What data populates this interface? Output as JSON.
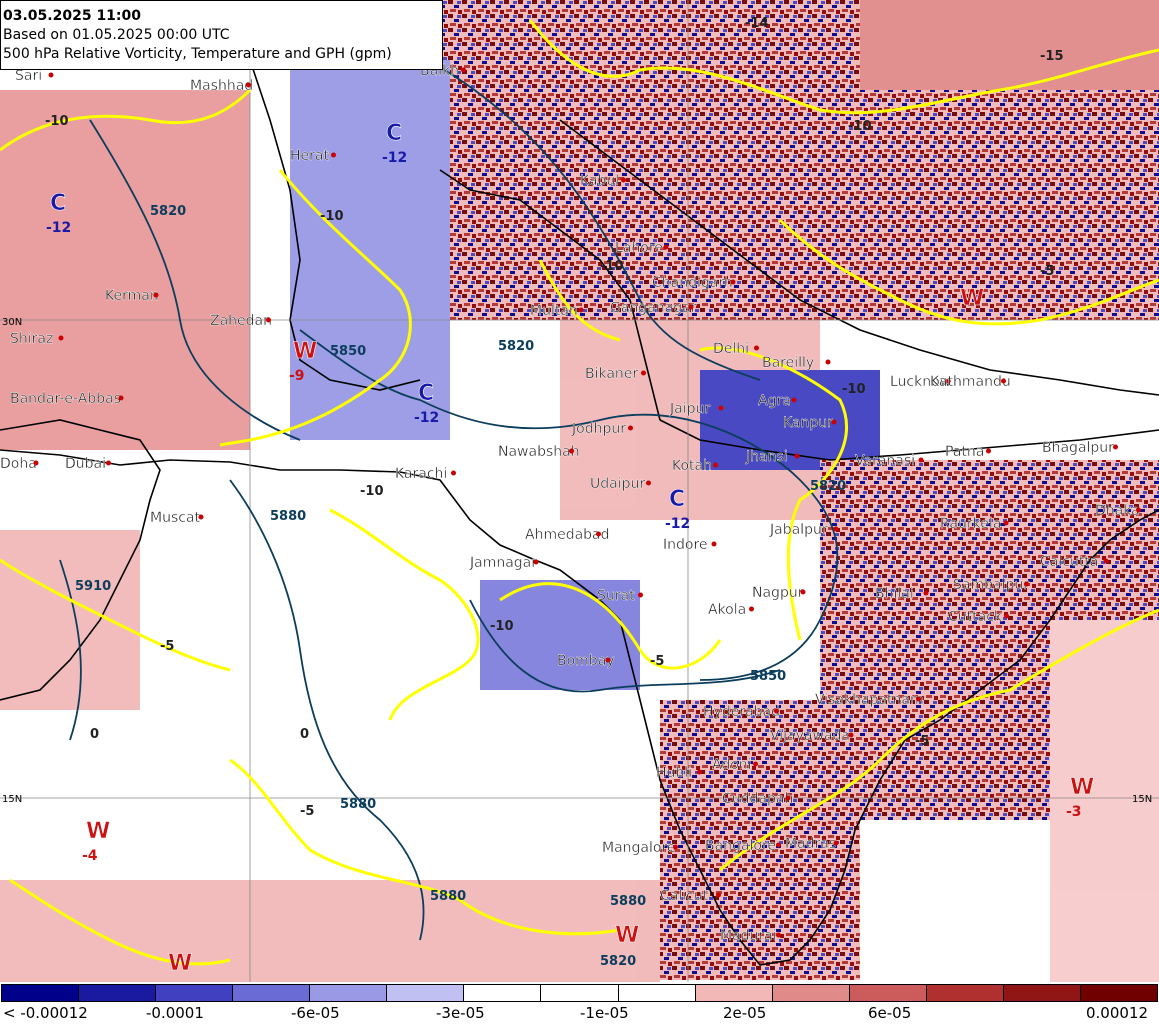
{
  "header": {
    "valid_time": "03.05.2025 11:00",
    "run": "Based on 01.05.2025 00:00 UTC",
    "parameter": "500 hPa Relative Vorticity, Temperature and GPH (gpm)"
  },
  "colorbar": {
    "colors": [
      "#00008b",
      "#1a1aa0",
      "#4040c0",
      "#6b6bd6",
      "#9999e6",
      "#c0c0f2",
      "#ffffff",
      "#ffffff",
      "#ffffff",
      "#f2b8b8",
      "#e08a8a",
      "#cc5c5c",
      "#b03030",
      "#901515",
      "#700000"
    ],
    "labels": [
      "< -0.00012",
      "-0.0001",
      "-6e-05",
      "-3e-05",
      "-1e-05",
      "2e-05",
      "6e-05",
      "0.00012"
    ]
  },
  "map": {
    "cities": [
      {
        "name": "Sari"
      },
      {
        "name": "Mashhad"
      },
      {
        "name": "Balkh"
      },
      {
        "name": "Herat"
      },
      {
        "name": "Kerman"
      },
      {
        "name": "Zahedan"
      },
      {
        "name": "Shiraz"
      },
      {
        "name": "Bandar-e-Abbas"
      },
      {
        "name": "Doha"
      },
      {
        "name": "Dubai"
      },
      {
        "name": "Muscat"
      },
      {
        "name": "Karachi"
      },
      {
        "name": "Nawabshah"
      },
      {
        "name": "Multan"
      },
      {
        "name": "Ganganagar"
      },
      {
        "name": "Chandigarh"
      },
      {
        "name": "Bikaner"
      },
      {
        "name": "Delhi"
      },
      {
        "name": "Bareilly"
      },
      {
        "name": "Agra"
      },
      {
        "name": "Jaipur"
      },
      {
        "name": "Jodhpur"
      },
      {
        "name": "Kanpur"
      },
      {
        "name": "Jhansi"
      },
      {
        "name": "Kotah"
      },
      {
        "name": "Udaipur"
      },
      {
        "name": "Varanasi"
      },
      {
        "name": "Patna"
      },
      {
        "name": "Ahmedabad"
      },
      {
        "name": "Indore"
      },
      {
        "name": "Jabalpur"
      },
      {
        "name": "Jamnagar"
      },
      {
        "name": "Surat"
      },
      {
        "name": "Akola"
      },
      {
        "name": "Nagpur"
      },
      {
        "name": "Bhilai"
      },
      {
        "name": "Bombay"
      },
      {
        "name": "Sambalpur"
      },
      {
        "name": "Cuttack"
      },
      {
        "name": "Hyderabad"
      },
      {
        "name": "Visakhapatnam"
      },
      {
        "name": "Vijayawada"
      },
      {
        "name": "Adoni"
      },
      {
        "name": "Hubli"
      },
      {
        "name": "Cuddapah"
      },
      {
        "name": "Mangalore"
      },
      {
        "name": "Bangalore"
      },
      {
        "name": "Madras"
      },
      {
        "name": "Calicut"
      },
      {
        "name": "Madurai"
      },
      {
        "name": "Dhaka"
      },
      {
        "name": "Calcutta"
      },
      {
        "name": "Raurkela"
      },
      {
        "name": "Bhagalpur"
      },
      {
        "name": "Lucknow"
      },
      {
        "name": "Kathmandu"
      },
      {
        "name": "Kabul"
      },
      {
        "name": "Lahore"
      }
    ],
    "pressure_markers": [
      {
        "letter": "C",
        "value": "-12",
        "type": "cold"
      },
      {
        "letter": "C",
        "value": "-12",
        "type": "cold"
      },
      {
        "letter": "C",
        "value": "-12",
        "type": "cold"
      },
      {
        "letter": "C",
        "value": "-12",
        "type": "cold"
      },
      {
        "letter": "W",
        "value": "-9",
        "type": "warm"
      },
      {
        "letter": "W",
        "value": "-4",
        "type": "warm"
      },
      {
        "letter": "W",
        "value": "-3",
        "type": "warm"
      },
      {
        "letter": "W",
        "value": "",
        "type": "warm"
      },
      {
        "letter": "W",
        "value": "",
        "type": "warm"
      },
      {
        "letter": "W",
        "value": "",
        "type": "warm"
      }
    ],
    "gph_labels": [
      "5820",
      "5850",
      "5880",
      "5880",
      "5910",
      "5850",
      "5820",
      "5880",
      "5880",
      "5820",
      "5820"
    ],
    "temp_labels": [
      "-10",
      "-10",
      "-10",
      "-10",
      "-5",
      "-5",
      "-5",
      "-10",
      "0",
      "0",
      "-15",
      "-14",
      "-5",
      "-10",
      "-5",
      "-10"
    ],
    "lat_labels": [
      "30N",
      "15N",
      "15N"
    ],
    "colors": {
      "cold": "#1a1aa8",
      "warm": "#cc1111",
      "isotherm": "#ffff00",
      "gph": "#0b3d5c"
    }
  }
}
